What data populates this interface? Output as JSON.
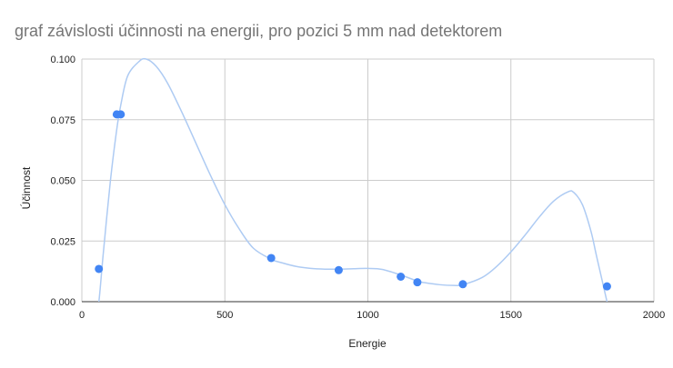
{
  "chart_data": {
    "type": "scatter",
    "title": "graf závislosti účinnosti na energii, pro pozici 5 mm nad detektorem",
    "xlabel": "Energie",
    "ylabel": "Účinnost",
    "xlim": [
      0,
      2000
    ],
    "ylim": [
      0,
      0.1
    ],
    "x_ticks": [
      "0",
      "500",
      "1000",
      "1500",
      "2000"
    ],
    "y_ticks": [
      "0.000",
      "0.025",
      "0.050",
      "0.075",
      "0.100"
    ],
    "grid": true,
    "legend": "none",
    "trendline": "polynomial",
    "colors": {
      "points": "#4285f4",
      "trendline": "#aecbf3"
    },
    "series": [
      {
        "x": [
          59.5,
          122,
          136,
          662,
          898,
          1115,
          1173,
          1332,
          1836
        ],
        "y": [
          0.0135,
          0.0772,
          0.0772,
          0.018,
          0.013,
          0.0103,
          0.008,
          0.0072,
          0.0063
        ]
      }
    ],
    "trend_curve": {
      "x": [
        48,
        59.5,
        75,
        100,
        122,
        136,
        160,
        200,
        225,
        260,
        300,
        350,
        400,
        450,
        500,
        550,
        600,
        662,
        700,
        750,
        800,
        850,
        898,
        950,
        1000,
        1050,
        1115,
        1173,
        1200,
        1250,
        1300,
        1332,
        1400,
        1450,
        1500,
        1550,
        1600,
        1650,
        1700,
        1720,
        1750,
        1780,
        1800,
        1836,
        1846
      ],
      "y": [
        -0.006,
        0.0,
        0.02,
        0.05,
        0.071,
        0.081,
        0.093,
        0.099,
        0.1,
        0.097,
        0.09,
        0.078,
        0.065,
        0.052,
        0.04,
        0.03,
        0.022,
        0.0175,
        0.016,
        0.0145,
        0.0137,
        0.0134,
        0.0134,
        0.0136,
        0.0137,
        0.0133,
        0.011,
        0.0085,
        0.0078,
        0.007,
        0.0067,
        0.007,
        0.01,
        0.0145,
        0.0205,
        0.0275,
        0.035,
        0.0415,
        0.0453,
        0.045,
        0.04,
        0.029,
        0.0185,
        0.0,
        -0.006
      ]
    }
  }
}
